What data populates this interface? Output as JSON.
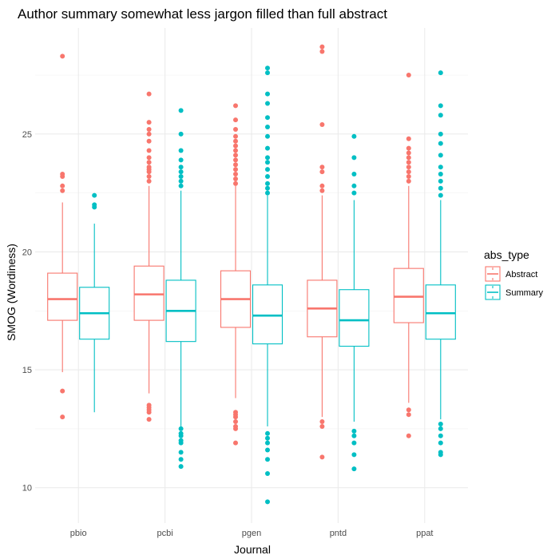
{
  "chart_data": {
    "type": "boxplot",
    "title": "Author summary somewhat less jargon filled than full abstract",
    "xlabel": "Journal",
    "ylabel": "SMOG (Wordiness)",
    "ylim": [
      8.5,
      29.5
    ],
    "yticks": [
      10,
      15,
      20,
      25
    ],
    "grid": true,
    "legend_position": "right",
    "legend": {
      "title": "abs_type",
      "entries": [
        {
          "name": "Abstract",
          "color": "#F8766D"
        },
        {
          "name": "Summary",
          "color": "#00BFC4"
        }
      ]
    },
    "categories": [
      "pbio",
      "pcbi",
      "pgen",
      "pntd",
      "ppat"
    ],
    "series": [
      {
        "name": "Abstract",
        "color": "#F8766D",
        "boxes": [
          {
            "whisker_low": 14.9,
            "q1": 17.1,
            "median": 18.0,
            "q3": 19.1,
            "whisker_high": 22.1,
            "outliers": [
              13.0,
              14.1,
              22.6,
              22.8,
              23.2,
              23.3,
              28.3
            ]
          },
          {
            "whisker_low": 14.0,
            "q1": 17.1,
            "median": 18.2,
            "q3": 19.4,
            "whisker_high": 22.8,
            "outliers": [
              12.9,
              13.2,
              13.3,
              13.4,
              13.5,
              23.0,
              23.2,
              23.4,
              23.5,
              23.6,
              23.8,
              24.0,
              24.3,
              24.7,
              25.0,
              25.2,
              25.5,
              26.7
            ]
          },
          {
            "whisker_low": 13.8,
            "q1": 16.8,
            "median": 18.0,
            "q3": 19.2,
            "whisker_high": 22.8,
            "outliers": [
              11.9,
              12.5,
              12.6,
              12.8,
              13.0,
              13.1,
              13.2,
              22.9,
              23.1,
              23.3,
              23.5,
              23.7,
              23.9,
              24.1,
              24.3,
              24.5,
              24.7,
              24.9,
              25.2,
              25.6,
              26.2
            ]
          },
          {
            "whisker_low": 13.0,
            "q1": 16.4,
            "median": 17.6,
            "q3": 18.8,
            "whisker_high": 22.4,
            "outliers": [
              11.3,
              12.6,
              12.8,
              22.6,
              22.8,
              23.4,
              23.6,
              25.4,
              28.5,
              28.7
            ]
          },
          {
            "whisker_low": 13.6,
            "q1": 17.0,
            "median": 18.1,
            "q3": 19.3,
            "whisker_high": 22.8,
            "outliers": [
              12.2,
              13.1,
              13.3,
              23.0,
              23.2,
              23.4,
              23.6,
              23.8,
              24.0,
              24.2,
              24.4,
              24.8,
              27.5
            ]
          }
        ]
      },
      {
        "name": "Summary",
        "color": "#00BFC4",
        "boxes": [
          {
            "whisker_low": 13.2,
            "q1": 16.3,
            "median": 17.4,
            "q3": 18.5,
            "whisker_high": 21.2,
            "outliers": [
              21.9,
              22.0,
              22.4
            ]
          },
          {
            "whisker_low": 12.6,
            "q1": 16.2,
            "median": 17.5,
            "q3": 18.8,
            "whisker_high": 22.6,
            "outliers": [
              10.9,
              11.2,
              11.5,
              11.9,
              12.0,
              12.2,
              12.3,
              12.5,
              22.8,
              23.0,
              23.2,
              23.4,
              23.6,
              23.9,
              24.3,
              25.0,
              26.0
            ]
          },
          {
            "whisker_low": 12.6,
            "q1": 16.1,
            "median": 17.3,
            "q3": 18.6,
            "whisker_high": 22.4,
            "outliers": [
              9.4,
              10.6,
              11.2,
              11.6,
              11.9,
              12.1,
              12.3,
              22.5,
              22.7,
              22.9,
              23.2,
              23.5,
              23.8,
              24.0,
              24.4,
              24.9,
              25.3,
              25.7,
              26.3,
              26.7,
              27.6,
              27.8
            ]
          },
          {
            "whisker_low": 12.8,
            "q1": 16.0,
            "median": 17.1,
            "q3": 18.4,
            "whisker_high": 22.2,
            "outliers": [
              10.8,
              11.4,
              11.9,
              12.2,
              12.4,
              22.5,
              22.8,
              23.3,
              24.0,
              24.9
            ]
          },
          {
            "whisker_low": 12.9,
            "q1": 16.3,
            "median": 17.4,
            "q3": 18.6,
            "whisker_high": 22.2,
            "outliers": [
              11.4,
              11.5,
              11.9,
              12.2,
              12.5,
              12.7,
              22.4,
              22.7,
              23.0,
              23.3,
              23.6,
              24.1,
              24.6,
              25.0,
              25.8,
              26.2,
              27.6
            ]
          }
        ]
      }
    ]
  }
}
